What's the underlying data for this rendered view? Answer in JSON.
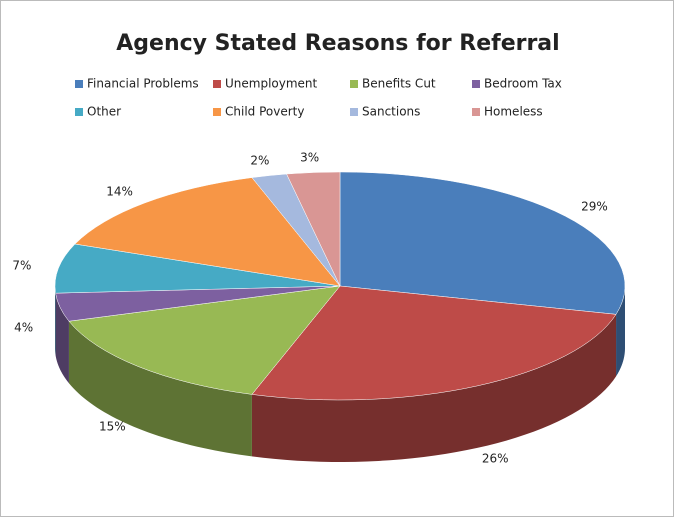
{
  "chart_data": {
    "type": "pie",
    "title": "Agency Stated Reasons for Referral",
    "categories": [
      "Financial Problems",
      "Unemployment",
      "Benefits Cut",
      "Bedroom Tax",
      "Other",
      "Child Poverty",
      "Sanctions",
      "Homeless"
    ],
    "values": [
      29,
      26,
      15,
      4,
      7,
      14,
      2,
      3
    ],
    "value_labels": [
      "29%",
      "26%",
      "15%",
      "4%",
      "7%",
      "14%",
      "2%",
      "3%"
    ],
    "colors": [
      "#4a7ebb",
      "#be4b48",
      "#98b954",
      "#7d60a0",
      "#46aac5",
      "#f79646",
      "#a5b9de",
      "#d99694"
    ],
    "legend": "top"
  }
}
